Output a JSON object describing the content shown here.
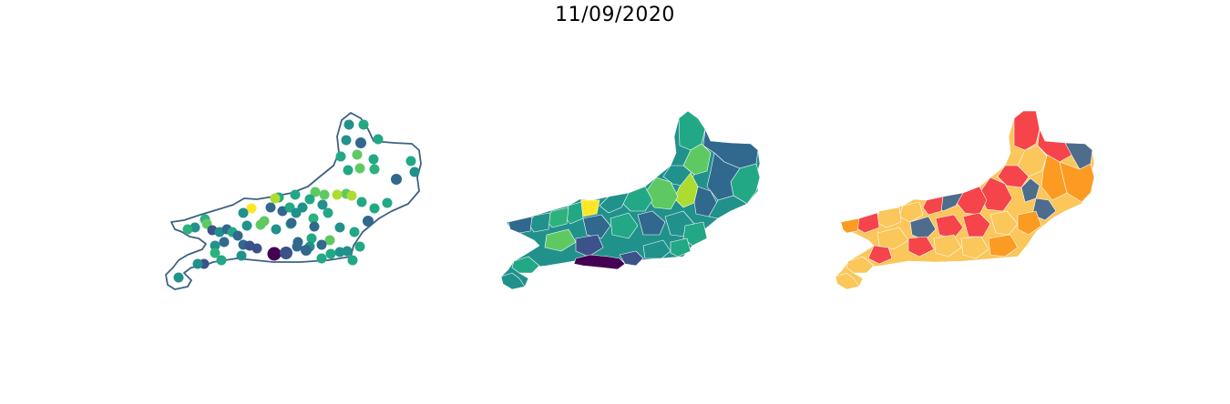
{
  "figure": {
    "title": "11/09/2020"
  },
  "colors": {
    "outline": "#3f6182",
    "viridis": [
      "#440154",
      "#3b528b",
      "#31688e",
      "#21918c",
      "#22a884",
      "#2db27d",
      "#5ec962",
      "#addc30",
      "#fde725"
    ],
    "risk": {
      "red": "#f5444a",
      "orange": "#fb9b22",
      "yellow": "#fbc65a",
      "slate": "#4e6c8c"
    }
  },
  "panels": [
    {
      "name": "points-map",
      "type": "proportional-points"
    },
    {
      "name": "choropleth-viridis",
      "type": "choropleth"
    },
    {
      "name": "choropleth-risk",
      "type": "choropleth-categorical"
    }
  ]
}
